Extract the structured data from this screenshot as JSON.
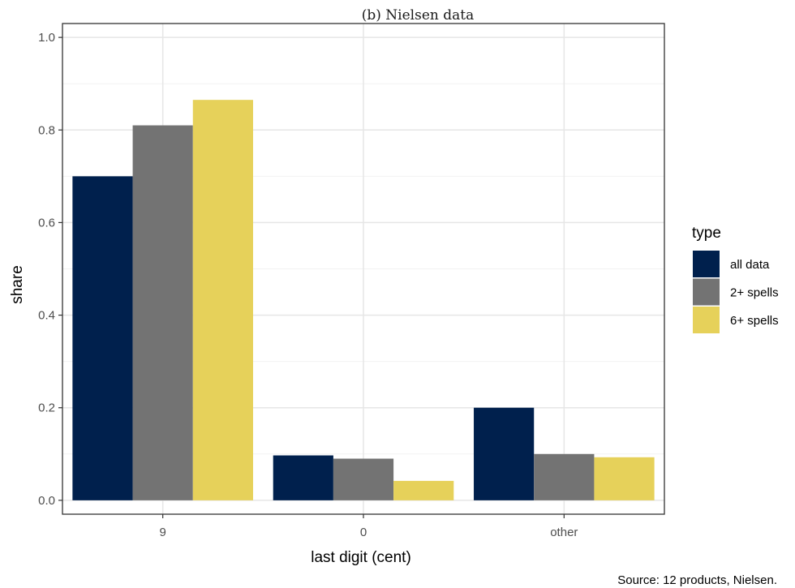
{
  "chart_data": {
    "type": "bar",
    "title": "(b) Nielsen data",
    "xlabel": "last digit (cent)",
    "ylabel": "share",
    "ylim": [
      -0.03,
      1.03
    ],
    "yticks": [
      "0.0",
      "0.2",
      "0.4",
      "0.6",
      "0.8",
      "1.0"
    ],
    "categories": [
      "9",
      "0",
      "other"
    ],
    "series": [
      {
        "name": "all data",
        "color": "#00204d",
        "values": [
          0.7,
          0.097,
          0.2
        ]
      },
      {
        "name": "2+ spells",
        "color": "#737373",
        "values": [
          0.81,
          0.09,
          0.1
        ]
      },
      {
        "name": "6+ spells",
        "color": "#e6d15a",
        "values": [
          0.865,
          0.042,
          0.093
        ]
      }
    ],
    "legend": {
      "title": "type",
      "position": "right"
    },
    "grid": true,
    "caption": "Source: 12 products, Nielsen."
  }
}
